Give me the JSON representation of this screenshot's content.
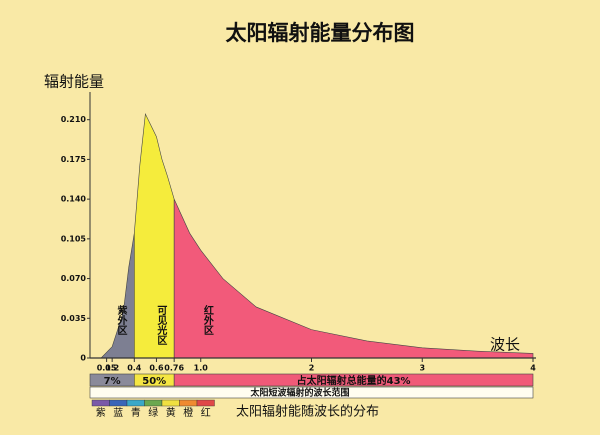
{
  "chart_data": {
    "type": "area",
    "title": "太阳辐射能量分布图",
    "y_label": "辐射能量",
    "x_label": "波长",
    "x": [
      0.1,
      0.2,
      0.3,
      0.35,
      0.4,
      0.45,
      0.5,
      0.55,
      0.6,
      0.65,
      0.7,
      0.76,
      0.9,
      1.0,
      1.2,
      1.5,
      2.0,
      2.5,
      3.0,
      3.5,
      4.0
    ],
    "values": [
      0,
      0.01,
      0.04,
      0.08,
      0.11,
      0.17,
      0.215,
      0.205,
      0.195,
      0.175,
      0.16,
      0.14,
      0.11,
      0.095,
      0.07,
      0.045,
      0.025,
      0.015,
      0.009,
      0.006,
      0.004
    ],
    "xlim": [
      0,
      4
    ],
    "ylim": [
      0,
      0.23
    ],
    "xticks": [
      0.15,
      0.2,
      0.4,
      0.6,
      0.76,
      {
        "value": 1,
        "label": "1.0"
      },
      2,
      3,
      4
    ],
    "yticks": [
      0,
      0.035,
      {
        "value": 0.07,
        "label": "0.070"
      },
      0.105,
      {
        "value": 0.14,
        "label": "0.140"
      },
      0.175,
      {
        "value": 0.21,
        "label": "0.210"
      }
    ],
    "regions": [
      {
        "name": "紫外区",
        "from": 0,
        "to": 0.4,
        "color": "#7d7f92"
      },
      {
        "name": "可见光区",
        "from": 0.4,
        "to": 0.76,
        "color": "#f5ec3c"
      },
      {
        "name": "红外区",
        "from": 0.76,
        "to": 4,
        "color": "#f25a7a"
      }
    ],
    "shares": [
      {
        "label": "7%",
        "value": 7,
        "from": 0,
        "to": 0.4,
        "color": "#8a8a9a"
      },
      {
        "label": "50%",
        "value": 50,
        "from": 0.4,
        "to": 0.76,
        "color": "#f5e642"
      },
      {
        "label": "占太阳辐射总能量的43%",
        "value": 43,
        "from": 0.76,
        "to": 4,
        "color": "#f05a78"
      }
    ],
    "short_wave_band": {
      "label": "太阳短波辐射的波长范围",
      "from": 0,
      "to": 4
    },
    "spectrum": [
      {
        "name": "紫",
        "color": "#7a5aa8"
      },
      {
        "name": "蓝",
        "color": "#3a66b8"
      },
      {
        "name": "青",
        "color": "#3aa8c8"
      },
      {
        "name": "绿",
        "color": "#6aa84f"
      },
      {
        "name": "黄",
        "color": "#f0e040"
      },
      {
        "name": "橙",
        "color": "#f08a30"
      },
      {
        "name": "红",
        "color": "#e04848"
      }
    ],
    "caption": "太阳辐射能随波长的分布"
  }
}
